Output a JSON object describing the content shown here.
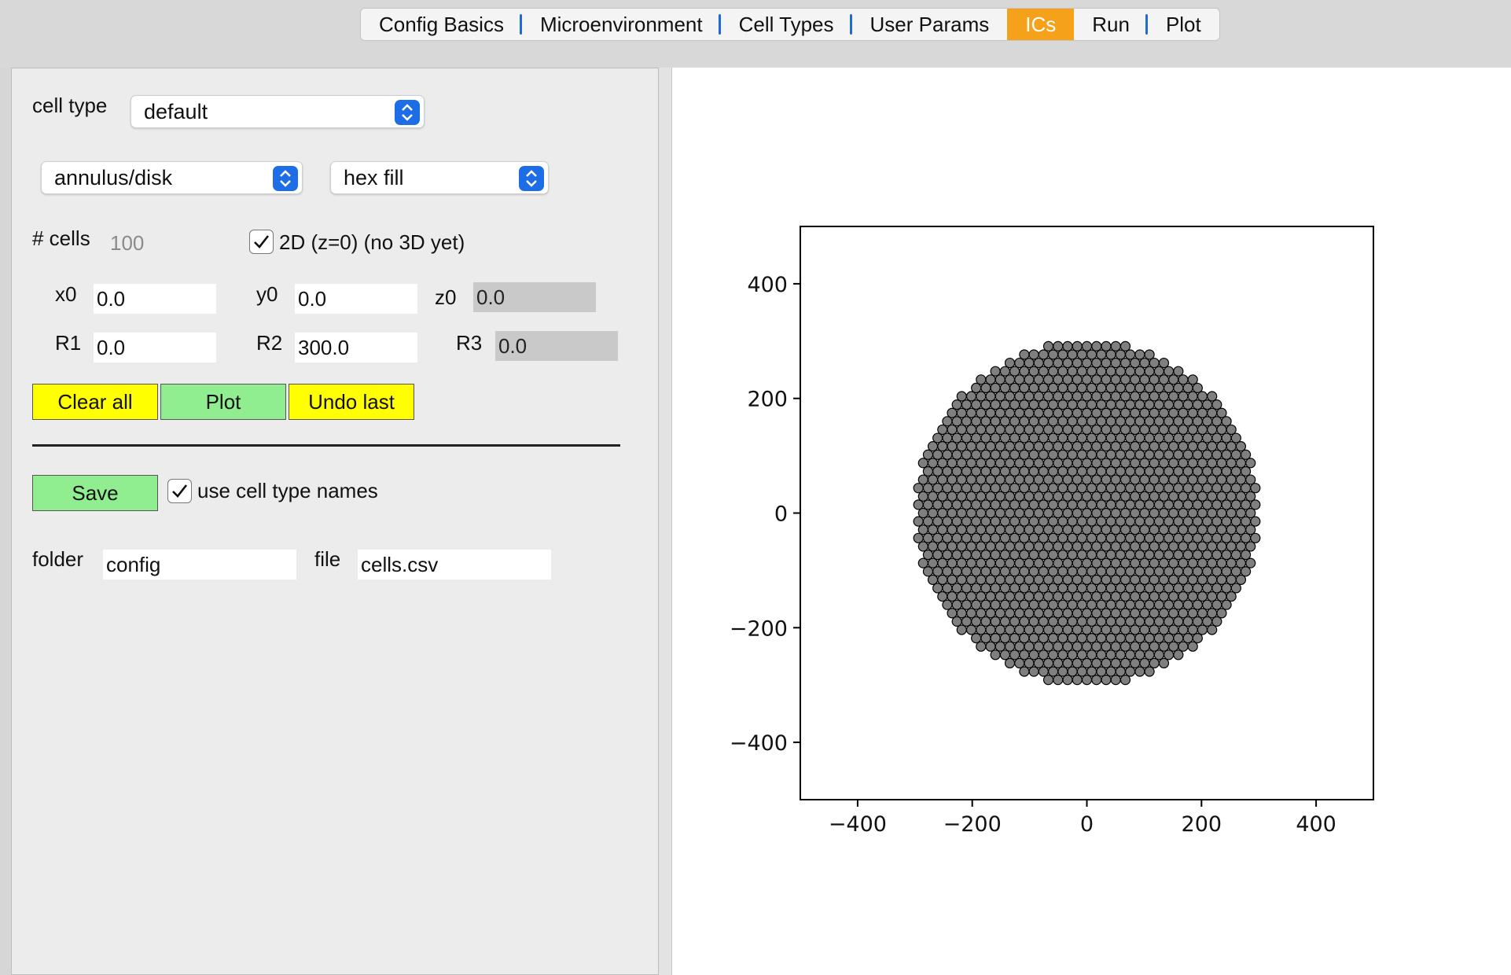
{
  "tabs": [
    {
      "label": "Config Basics",
      "active": false
    },
    {
      "label": "Microenvironment",
      "active": false
    },
    {
      "label": "Cell Types",
      "active": false
    },
    {
      "label": "User Params",
      "active": false
    },
    {
      "label": "ICs",
      "active": true
    },
    {
      "label": "Run",
      "active": false
    },
    {
      "label": "Plot",
      "active": false
    }
  ],
  "form": {
    "cell_type_label": "cell type",
    "cell_type_value": "default",
    "geometry_value": "annulus/disk",
    "fill_value": "hex fill",
    "ncells_label": "# cells",
    "ncells_value": "100",
    "twod_label": "2D (z=0) (no 3D yet)",
    "twod_checked": true,
    "x0_label": "x0",
    "x0_value": "0.0",
    "y0_label": "y0",
    "y0_value": "0.0",
    "z0_label": "z0",
    "z0_value": "0.0",
    "r1_label": "R1",
    "r1_value": "0.0",
    "r2_label": "R2",
    "r2_value": "300.0",
    "r3_label": "R3",
    "r3_value": "0.0",
    "clear_label": "Clear all",
    "plot_label": "Plot",
    "undo_label": "Undo last",
    "save_label": "Save",
    "use_names_label": "use cell type names",
    "use_names_checked": true,
    "folder_label": "folder",
    "folder_value": "config",
    "file_label": "file",
    "file_value": "cells.csv"
  },
  "colors": {
    "active_tab": "#f5a11a",
    "tab_separator": "#1e6ad9",
    "yellow_button": "#ffff00",
    "green_button": "#90ee90",
    "cell_fill": "#7f7f7f",
    "cell_edge": "#000000"
  },
  "chart_data": {
    "type": "scatter",
    "title": "",
    "xlabel": "",
    "ylabel": "",
    "xlim": [
      -500,
      500
    ],
    "ylim": [
      -500,
      500
    ],
    "xticks": [
      -400,
      -200,
      0,
      200,
      400
    ],
    "yticks": [
      400,
      200,
      0,
      -200,
      -400
    ],
    "xtick_labels": [
      "−400",
      "−200",
      "0",
      "200",
      "400"
    ],
    "ytick_labels": [
      "400",
      "200",
      "0",
      "−200",
      "−400"
    ],
    "grid": false,
    "legend": false,
    "series": [
      {
        "pattern": "hex fill of disk",
        "center": [
          0,
          0
        ],
        "inner_radius": 0,
        "outer_radius": 300,
        "cell_diameter": 16.8
      }
    ]
  }
}
